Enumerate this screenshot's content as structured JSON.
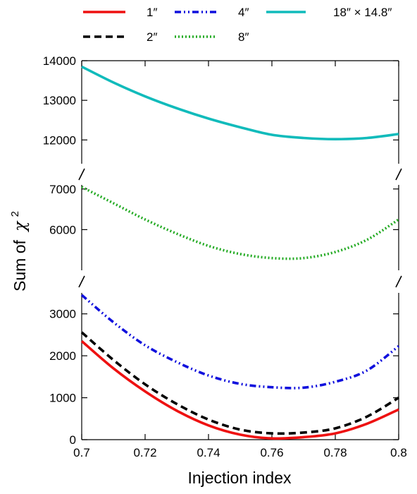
{
  "chart_data": {
    "type": "line",
    "xlabel": "Injection index",
    "ylabel": "Sum of",
    "ylabel_symbol": "χ",
    "ylabel_exponent": "2",
    "xlim": [
      0.7,
      0.8
    ],
    "x_ticks": [
      "0.7",
      "0.72",
      "0.74",
      "0.76",
      "0.78",
      "0.8"
    ],
    "broken_y_axis": true,
    "panels": [
      {
        "ylim": [
          11400,
          14000
        ],
        "y_ticks": [
          12000,
          13000,
          14000
        ]
      },
      {
        "ylim": [
          5000,
          7100
        ],
        "y_ticks": [
          6000,
          7000
        ]
      },
      {
        "ylim": [
          0,
          3500
        ],
        "y_ticks": [
          0,
          1000,
          2000,
          3000
        ]
      }
    ],
    "legend_position": "top",
    "series": [
      {
        "name": "1″",
        "color": "#ee1111",
        "dash": "solid",
        "panel": 2,
        "x": [
          0.7,
          0.71,
          0.72,
          0.73,
          0.74,
          0.75,
          0.76,
          0.77,
          0.78,
          0.79,
          0.8
        ],
        "y": [
          2350,
          1700,
          1150,
          690,
          340,
          120,
          30,
          60,
          150,
          380,
          720
        ]
      },
      {
        "name": "2″",
        "color": "#000000",
        "dash": "dashed",
        "panel": 2,
        "x": [
          0.7,
          0.71,
          0.72,
          0.73,
          0.74,
          0.75,
          0.76,
          0.77,
          0.78,
          0.79,
          0.8
        ],
        "y": [
          2560,
          1900,
          1320,
          850,
          480,
          240,
          150,
          170,
          270,
          550,
          1000
        ]
      },
      {
        "name": "4″",
        "color": "#1010dd",
        "dash": "dashdotdot",
        "panel": 2,
        "x": [
          0.7,
          0.71,
          0.72,
          0.73,
          0.74,
          0.75,
          0.76,
          0.77,
          0.78,
          0.79,
          0.8
        ],
        "y": [
          3450,
          2800,
          2250,
          1850,
          1530,
          1330,
          1250,
          1240,
          1380,
          1650,
          2230
        ]
      },
      {
        "name": "8″",
        "color": "#22aa22",
        "dash": "dotted",
        "panel": 1,
        "x": [
          0.7,
          0.71,
          0.72,
          0.73,
          0.74,
          0.75,
          0.76,
          0.77,
          0.78,
          0.79,
          0.8
        ],
        "y": [
          7050,
          6650,
          6250,
          5900,
          5600,
          5400,
          5300,
          5300,
          5450,
          5750,
          6250
        ]
      },
      {
        "name": "18″ × 14.8″",
        "color": "#11bbbb",
        "dash": "solid",
        "panel": 0,
        "x": [
          0.7,
          0.71,
          0.72,
          0.73,
          0.74,
          0.75,
          0.76,
          0.77,
          0.78,
          0.79,
          0.8
        ],
        "y": [
          13850,
          13450,
          13100,
          12800,
          12540,
          12320,
          12130,
          12050,
          12020,
          12050,
          12150
        ]
      }
    ]
  }
}
